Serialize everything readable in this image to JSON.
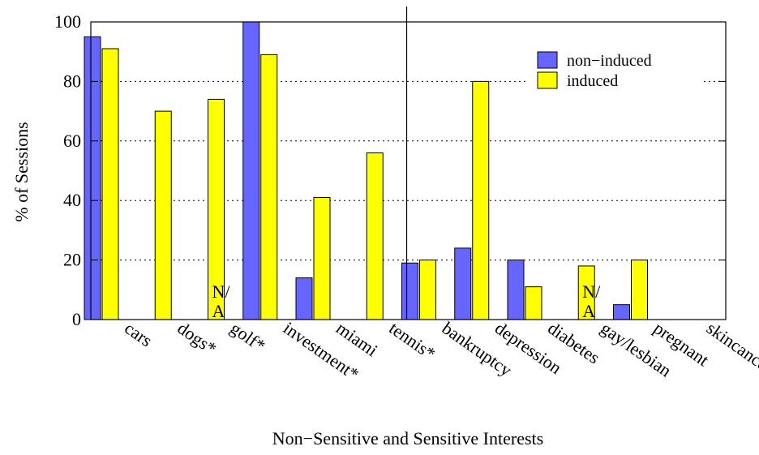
{
  "chart_data": {
    "type": "bar",
    "xlabel": "Non−Sensitive and Sensitive Interests",
    "ylabel": "% of Sessions",
    "ylim": [
      0,
      100
    ],
    "yticks": [
      "0",
      "20",
      "40",
      "60",
      "80",
      "100"
    ],
    "grid": "horizontal dotted",
    "legend_position": "top-right",
    "categories": [
      "cars",
      "dogs*",
      "golf*",
      "investment*",
      "miami",
      "tennis*",
      "bankruptcy",
      "depression",
      "diabetes",
      "gay/lesbian",
      "pregnant",
      "skincancer"
    ],
    "series": [
      {
        "name": "non−induced",
        "color": "#6666ff",
        "values": [
          95,
          0,
          null,
          100,
          14,
          0,
          19,
          24,
          20,
          null,
          5,
          0
        ]
      },
      {
        "name": "induced",
        "color": "#ffff00",
        "values": [
          91,
          70,
          74,
          89,
          41,
          56,
          20,
          80,
          11,
          18,
          20,
          0
        ]
      }
    ],
    "annotations": [
      {
        "category": "golf*",
        "line1": "N/",
        "line2": "A"
      },
      {
        "category": "gay/lesbian",
        "line1": "N/",
        "line2": "A"
      }
    ],
    "separator_after_category": "tennis*"
  }
}
